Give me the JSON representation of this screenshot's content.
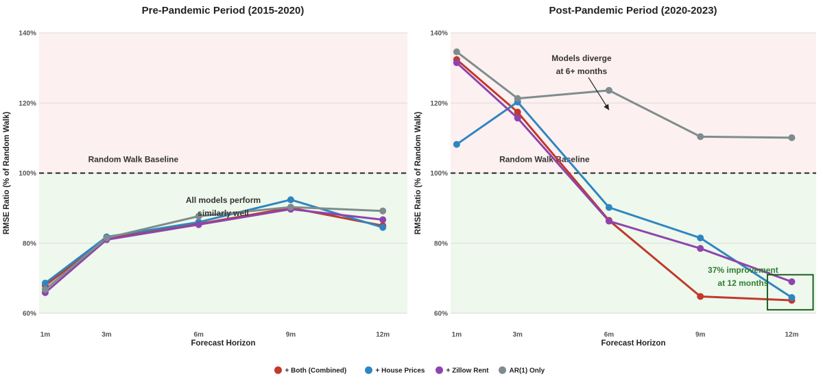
{
  "chart_data": [
    {
      "type": "line",
      "title": "Pre-Pandemic Period (2015-2020)",
      "xlabel": "Forecast Horizon",
      "ylabel": "RMSE Ratio (% of Random Walk)",
      "categories": [
        "1m",
        "3m",
        "6m",
        "9m",
        "12m"
      ],
      "x_months": [
        1,
        3,
        6,
        9,
        12
      ],
      "ylim": [
        60,
        140
      ],
      "yticks": [
        60,
        80,
        100,
        120,
        140
      ],
      "ytick_labels": [
        "60%",
        "80%",
        "100%",
        "120%",
        "140%"
      ],
      "baseline": {
        "value": 100,
        "label": "Random Walk Baseline"
      },
      "shaded_regions": [
        {
          "from": 100,
          "to": 140,
          "color": "#fdf0f0"
        },
        {
          "from": 60,
          "to": 100,
          "color": "#eef8ec"
        }
      ],
      "series": [
        {
          "name": "+ Both (Combined)",
          "color": "#c0392b",
          "values": [
            67.9,
            81.3,
            85.5,
            90.1,
            85.0
          ]
        },
        {
          "name": "+ House Prices",
          "color": "#2e86c1",
          "values": [
            68.6,
            81.8,
            86.0,
            92.4,
            84.5
          ]
        },
        {
          "name": "+ Zillow Rent",
          "color": "#8e44ad",
          "values": [
            65.9,
            81.0,
            85.3,
            89.7,
            86.7
          ]
        },
        {
          "name": "AR(1) Only",
          "color": "#7f8c8d",
          "values": [
            66.8,
            81.5,
            87.7,
            90.3,
            89.2
          ]
        }
      ],
      "annotations": [
        {
          "lines": [
            "All models perform",
            "similarly well"
          ],
          "x": 6.8,
          "y": 91.5
        }
      ]
    },
    {
      "type": "line",
      "title": "Post-Pandemic Period (2020-2023)",
      "xlabel": "Forecast Horizon",
      "ylabel": "RMSE Ratio (% of Random Walk)",
      "categories": [
        "1m",
        "3m",
        "6m",
        "9m",
        "12m"
      ],
      "x_months": [
        1,
        3,
        6,
        9,
        12
      ],
      "ylim": [
        60,
        140
      ],
      "yticks": [
        60,
        80,
        100,
        120,
        140
      ],
      "ytick_labels": [
        "60%",
        "80%",
        "100%",
        "120%",
        "140%"
      ],
      "baseline": {
        "value": 100,
        "label": "Random Walk Baseline"
      },
      "shaded_regions": [
        {
          "from": 100,
          "to": 140,
          "color": "#fdf0f0"
        },
        {
          "from": 60,
          "to": 100,
          "color": "#eef8ec"
        }
      ],
      "series": [
        {
          "name": "+ Both (Combined)",
          "color": "#c0392b",
          "values": [
            132.4,
            117.4,
            86.5,
            64.8,
            63.7
          ]
        },
        {
          "name": "+ House Prices",
          "color": "#2e86c1",
          "values": [
            108.2,
            120.3,
            90.2,
            81.5,
            64.5
          ]
        },
        {
          "name": "+ Zillow Rent",
          "color": "#8e44ad",
          "values": [
            131.5,
            115.7,
            86.3,
            78.5,
            69.0
          ]
        },
        {
          "name": "AR(1) Only",
          "color": "#7f8c8d",
          "values": [
            134.6,
            121.3,
            123.6,
            110.4,
            110.1
          ]
        }
      ],
      "annotations": [
        {
          "lines": [
            "Models diverge",
            "at 6+ months"
          ],
          "x": 5.1,
          "y": 132,
          "arrow_to": [
            6.0,
            118
          ]
        },
        {
          "lines": [
            "37% improvement",
            "at 12 months"
          ],
          "x": 10.4,
          "y": 71.5,
          "color": "#2e7d32",
          "highlight_box": {
            "x": [
              11.2,
              12.7
            ],
            "y": [
              61,
              71
            ]
          }
        }
      ]
    }
  ],
  "legend": {
    "placement": "bottom-center",
    "items": [
      {
        "label": "+ Both (Combined)",
        "color": "#c0392b"
      },
      {
        "label": "+ House Prices",
        "color": "#2e86c1"
      },
      {
        "label": "+ Zillow Rent",
        "color": "#8e44ad"
      },
      {
        "label": "AR(1) Only",
        "color": "#7f8c8d"
      }
    ]
  }
}
